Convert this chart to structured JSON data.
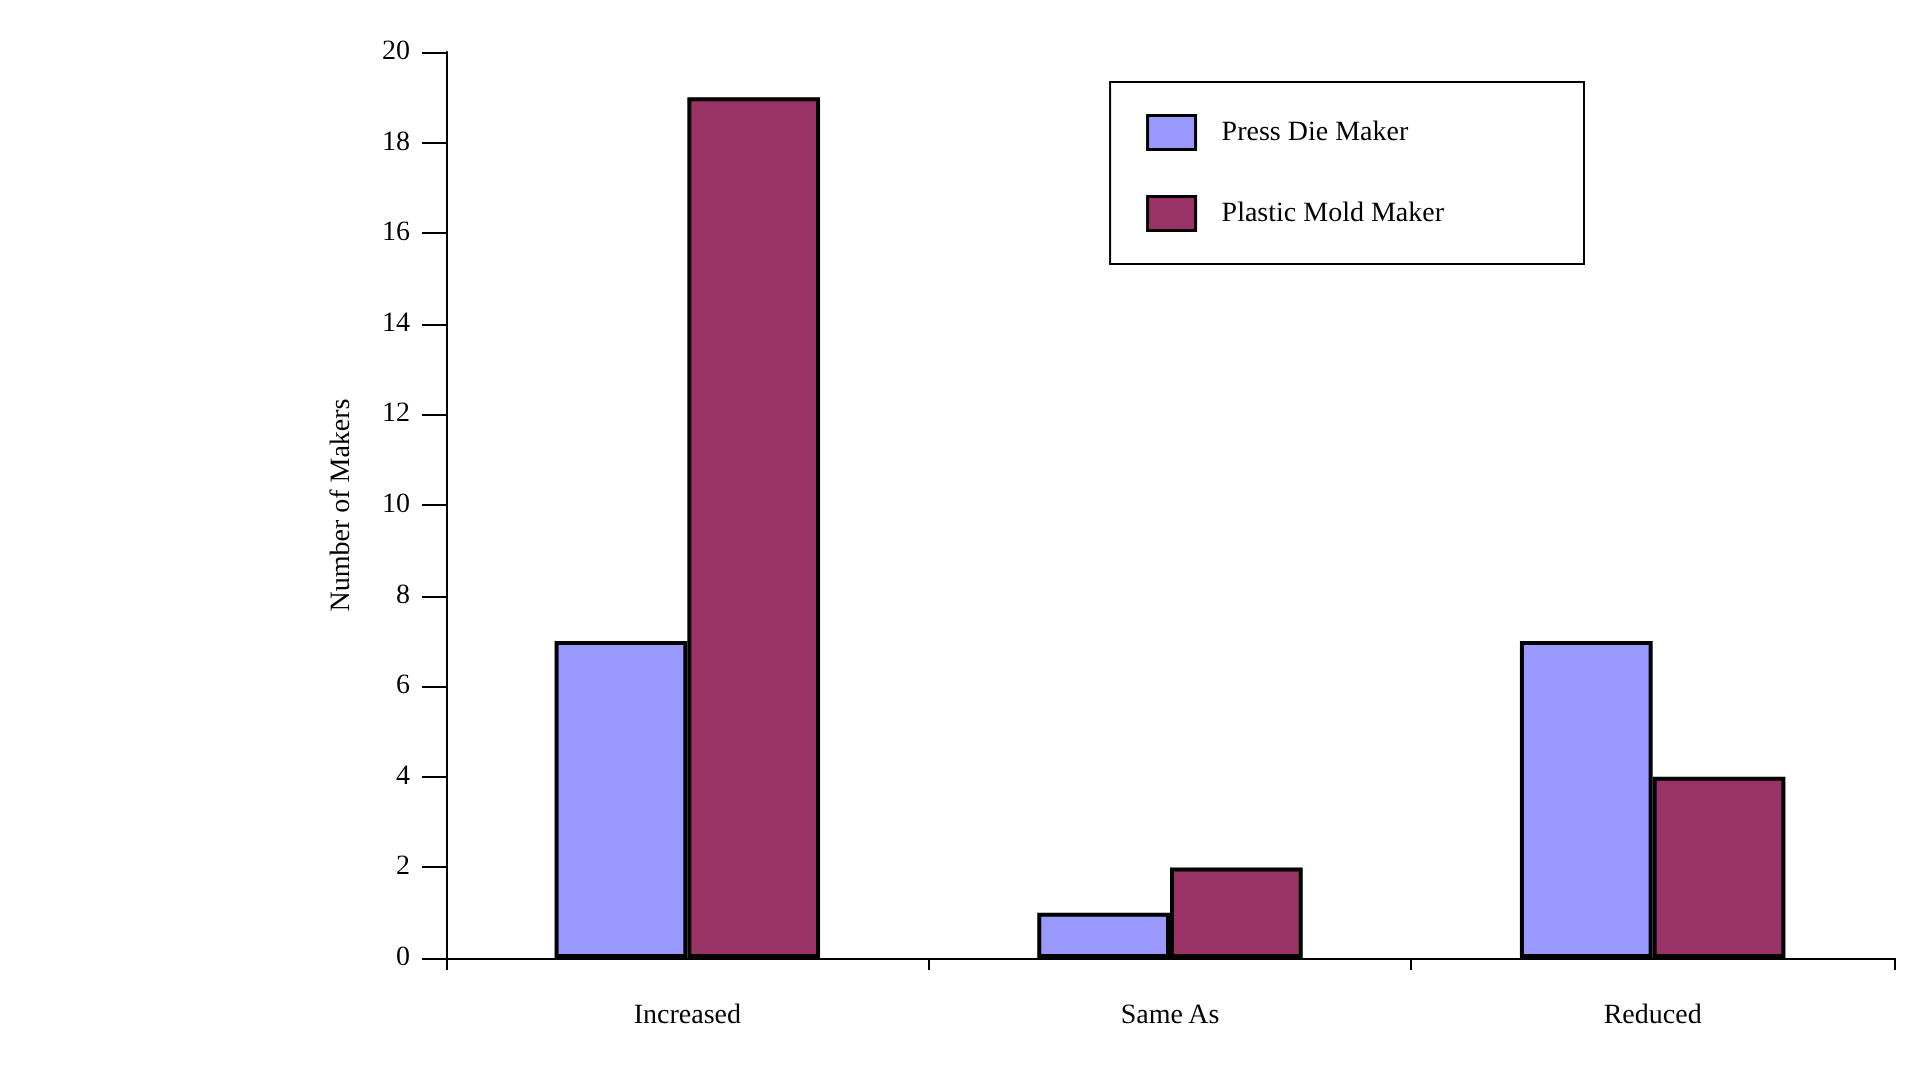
{
  "chart_data": {
    "type": "bar",
    "ylabel": "Number of Makers",
    "categories": [
      "Increased",
      "Same As",
      "Reduced"
    ],
    "series": [
      {
        "name": "Press Die Maker",
        "color": "#9999ff",
        "values": [
          7,
          1,
          7
        ]
      },
      {
        "name": "Plastic Mold Maker",
        "color": "#993366",
        "values": [
          19,
          2,
          4
        ]
      }
    ],
    "ylim": [
      0,
      20
    ],
    "yticks": [
      0,
      2,
      4,
      6,
      8,
      10,
      12,
      14,
      16,
      18,
      20
    ],
    "grid": false,
    "legend": "top right"
  }
}
